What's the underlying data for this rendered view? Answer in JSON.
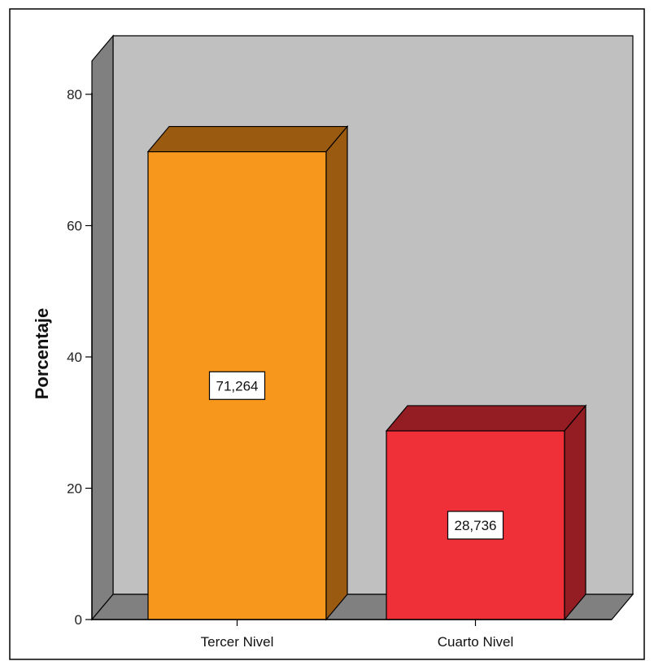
{
  "chart_data": {
    "type": "bar",
    "style": "3d",
    "categories": [
      "Tercer Nivel",
      "Cuarto Nivel"
    ],
    "values": [
      71.264,
      28.736
    ],
    "data_labels": [
      "71,264",
      "28,736"
    ],
    "title": "",
    "xlabel": "",
    "ylabel": "Porcentaje",
    "ylim": [
      0,
      80
    ],
    "yticks": [
      0,
      20,
      40,
      60,
      80
    ],
    "ytick_labels": [
      "0",
      "20",
      "40",
      "60",
      "80"
    ],
    "grid": false,
    "legend": "none",
    "colors": {
      "bars": [
        {
          "front": "#F7981D",
          "side": "#9A5A10",
          "top": "#9A5A10"
        },
        {
          "front": "#EF3038",
          "side": "#941D24",
          "top": "#941D24"
        }
      ],
      "back_wall": "#C0C0C0",
      "side_wall": "#808080",
      "floor": "#808080",
      "outline": "#000000"
    }
  }
}
